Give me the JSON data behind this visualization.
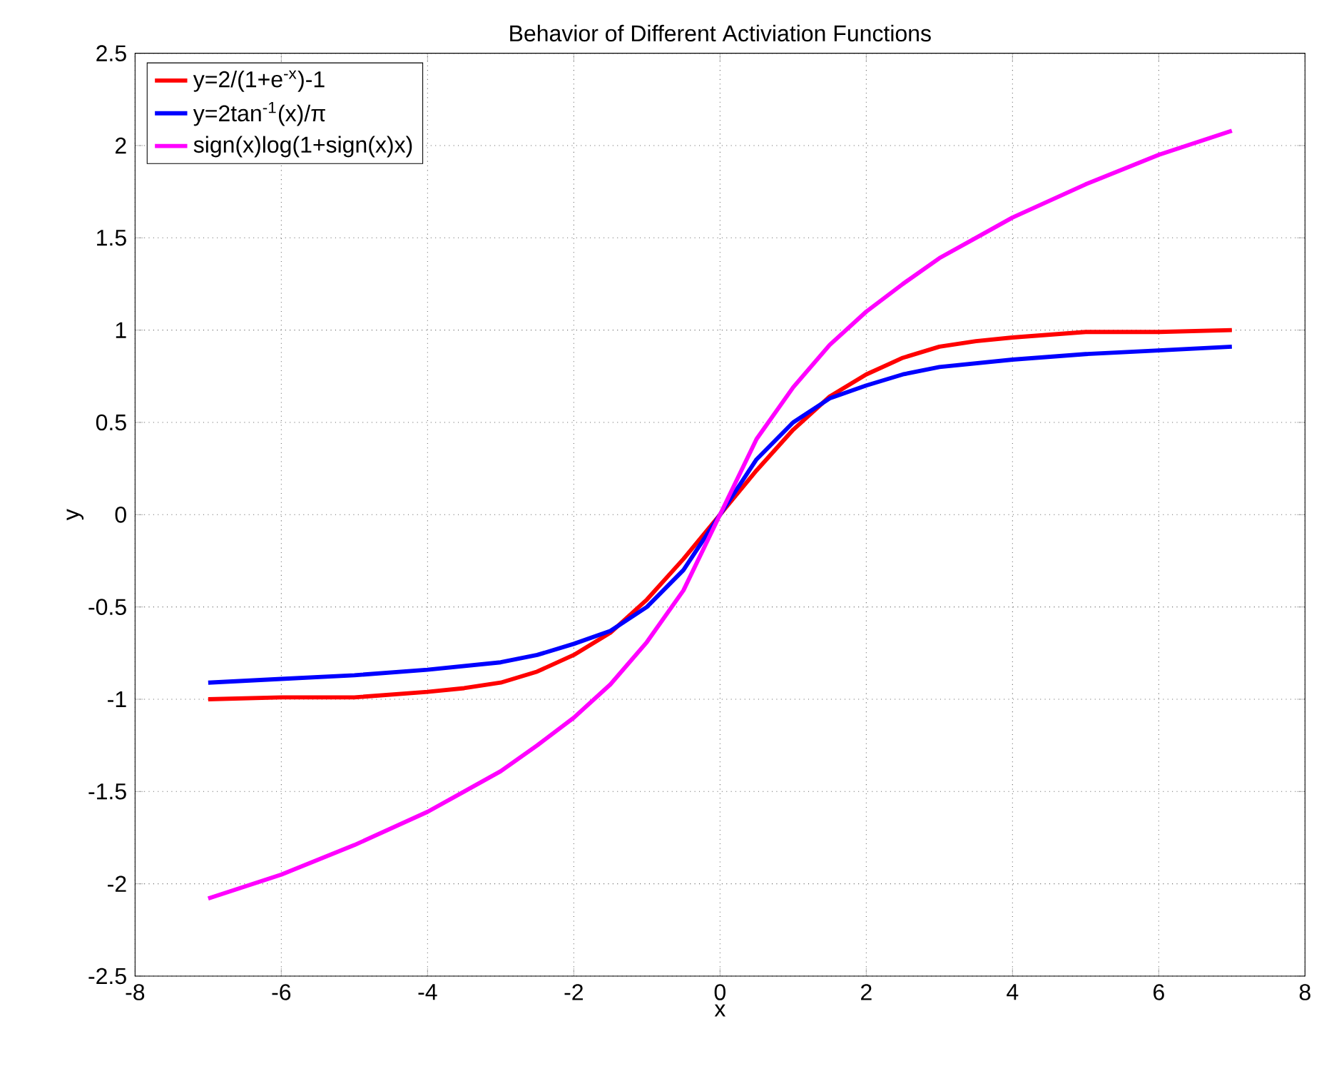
{
  "chart_data": {
    "type": "line",
    "title": "Behavior of Different Activiation Functions",
    "xlabel": "x",
    "ylabel": "y",
    "x": [
      -7,
      -6,
      -5,
      -4,
      -3.5,
      -3,
      -2.5,
      -2,
      -1.5,
      -1,
      -0.5,
      0,
      0.5,
      1,
      1.5,
      2,
      2.5,
      3,
      3.5,
      4,
      5,
      6,
      7
    ],
    "series": [
      {
        "name": "y=2/(1+e$^{-x}$)-1",
        "color": "#ff0000",
        "values": [
          -1.0,
          -0.99,
          -0.99,
          -0.96,
          -0.94,
          -0.91,
          -0.85,
          -0.76,
          -0.64,
          -0.46,
          -0.24,
          0,
          0.24,
          0.46,
          0.64,
          0.76,
          0.85,
          0.91,
          0.94,
          0.96,
          0.99,
          0.99,
          1.0
        ]
      },
      {
        "name": "y=2tan$^{-1}$(x)/π",
        "color": "#0000ff",
        "values": [
          -0.91,
          -0.89,
          -0.87,
          -0.84,
          -0.82,
          -0.8,
          -0.76,
          -0.7,
          -0.63,
          -0.5,
          -0.3,
          0,
          0.3,
          0.5,
          0.63,
          0.7,
          0.76,
          0.8,
          0.82,
          0.84,
          0.87,
          0.89,
          0.91
        ]
      },
      {
        "name": "sign(x)log(1+sign(x)x)",
        "color": "#ff00ff",
        "values": [
          -2.08,
          -1.95,
          -1.79,
          -1.61,
          -1.5,
          -1.39,
          -1.25,
          -1.1,
          -0.92,
          -0.69,
          -0.41,
          0,
          0.41,
          0.69,
          0.92,
          1.1,
          1.25,
          1.39,
          1.5,
          1.61,
          1.79,
          1.95,
          2.08
        ]
      }
    ],
    "xlim": [
      -8,
      8
    ],
    "ylim": [
      -2.5,
      2.5
    ],
    "xticks": [
      -8,
      -6,
      -4,
      -2,
      0,
      2,
      4,
      6,
      8
    ],
    "yticks": [
      -2.5,
      -2,
      -1.5,
      -1,
      -0.5,
      0,
      0.5,
      1,
      1.5,
      2,
      2.5
    ],
    "grid": true,
    "legend": "top left",
    "marker": "none",
    "line_style": "solid"
  }
}
